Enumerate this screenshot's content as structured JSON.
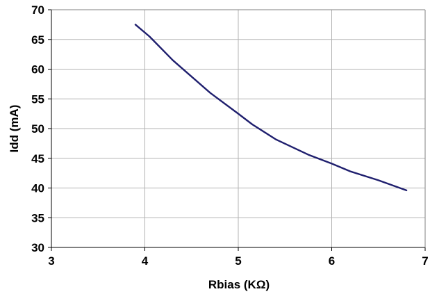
{
  "chart_data": {
    "type": "line",
    "title": "",
    "xlabel": "Rbias (KΩ)",
    "ylabel": "Idd (mA)",
    "xlim": [
      3,
      7
    ],
    "ylim": [
      30,
      70
    ],
    "x_ticks": [
      3,
      4,
      5,
      6,
      7
    ],
    "y_ticks": [
      30,
      35,
      40,
      45,
      50,
      55,
      60,
      65,
      70
    ],
    "x_tick_labels": [
      "3",
      "4",
      "5",
      "6",
      "7"
    ],
    "y_tick_labels": [
      "30",
      "35",
      "40",
      "45",
      "50",
      "55",
      "60",
      "65",
      "70"
    ],
    "grid": true,
    "legend": "none",
    "series": [
      {
        "color": "#1f1f6e",
        "x": [
          3.9,
          4.05,
          4.3,
          4.7,
          5.0,
          5.15,
          5.4,
          5.75,
          6.0,
          6.2,
          6.5,
          6.8
        ],
        "y": [
          67.5,
          65.5,
          61.5,
          56.0,
          52.5,
          50.7,
          48.2,
          45.6,
          44.1,
          42.8,
          41.3,
          39.6
        ]
      }
    ]
  }
}
